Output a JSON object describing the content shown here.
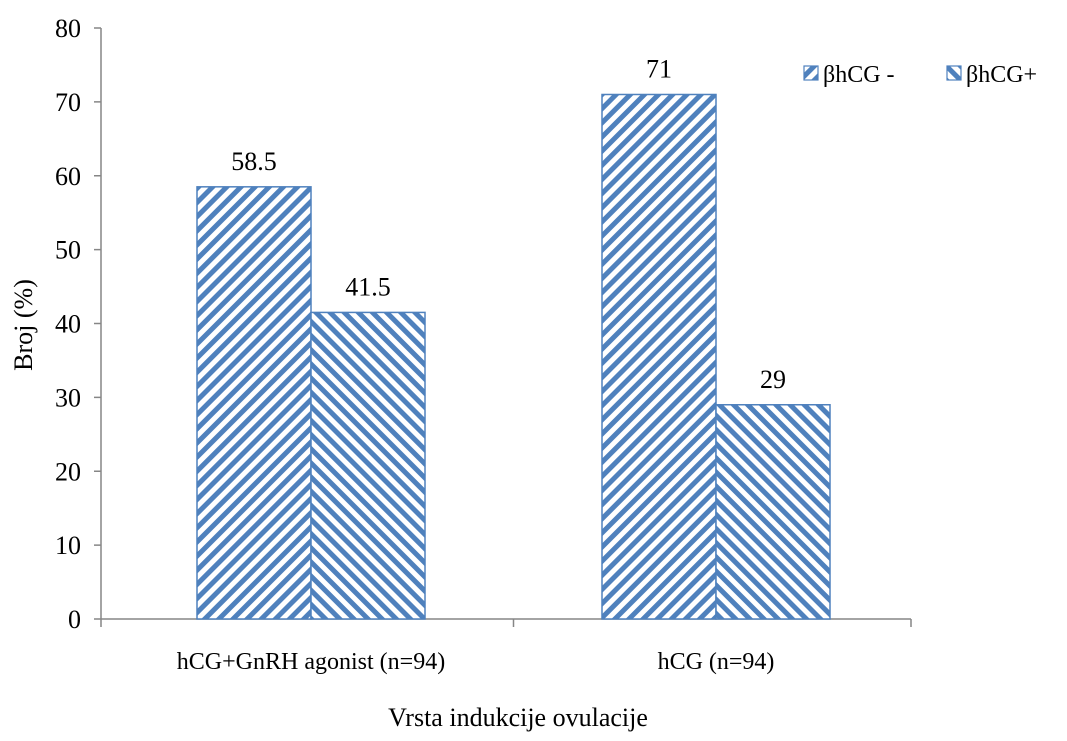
{
  "chart_data": {
    "type": "bar",
    "title": "",
    "xlabel": "Vrsta indukcije ovulacije",
    "ylabel": "Broj (%)",
    "ylim": [
      0,
      80
    ],
    "yticks": [
      0,
      10,
      20,
      30,
      40,
      50,
      60,
      70,
      80
    ],
    "yticks_labels": [
      "0",
      "10",
      "20",
      "30",
      "40",
      "50",
      "60",
      "70",
      "80"
    ],
    "categories": [
      "hCG+GnRH agonist (n=94)",
      "hCG (n=94)"
    ],
    "series": [
      {
        "name": "βhCG -",
        "values": [
          58.5,
          71
        ],
        "value_labels": [
          "58.5",
          "71"
        ],
        "pattern": "forward-diagonal",
        "color": "#4F81BD"
      },
      {
        "name": "βhCG+",
        "values": [
          41.5,
          29
        ],
        "value_labels": [
          "41.5",
          "29"
        ],
        "pattern": "backward-diagonal",
        "color": "#4F81BD"
      }
    ],
    "legend_position": "top-right",
    "grid": false
  }
}
